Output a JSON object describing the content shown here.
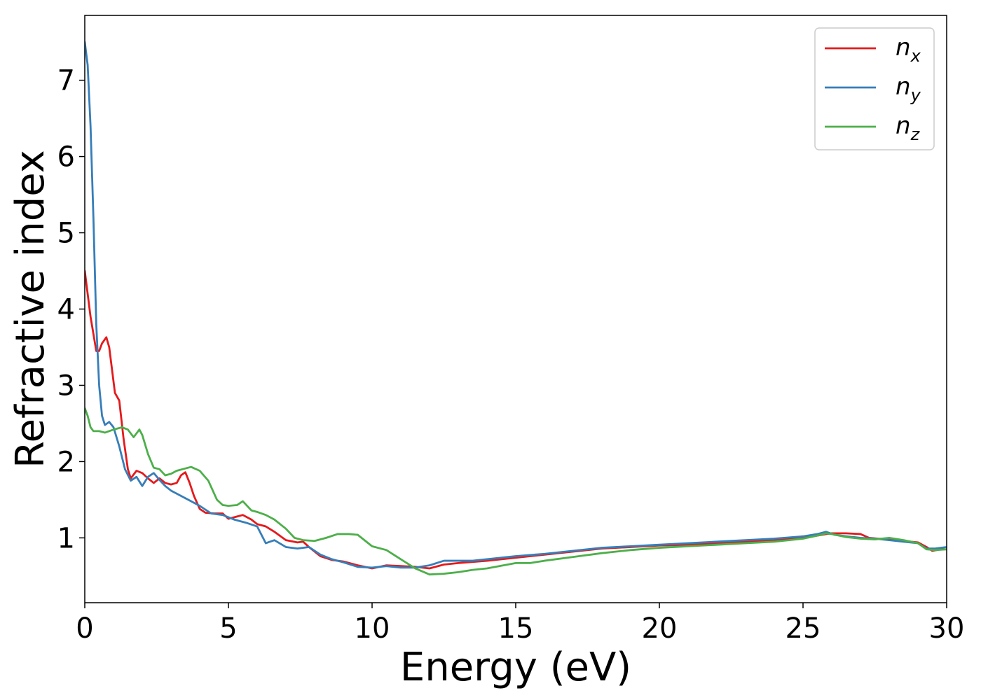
{
  "chart_data": {
    "type": "line",
    "title": "",
    "xlabel": "Energy (eV)",
    "ylabel": "Refractive index",
    "xlim": [
      0,
      30
    ],
    "ylim": [
      0.15,
      7.85
    ],
    "xticks": [
      0,
      5,
      10,
      15,
      20,
      25,
      30
    ],
    "yticks": [
      1,
      2,
      3,
      4,
      5,
      6,
      7
    ],
    "grid": false,
    "legend_position": "top-right",
    "series": [
      {
        "name_base": "n",
        "name_sub": "x",
        "color": "#e41a1c",
        "x": [
          0,
          0.2,
          0.4,
          0.5,
          0.6,
          0.75,
          0.85,
          0.95,
          1.05,
          1.2,
          1.35,
          1.5,
          1.6,
          1.8,
          2.0,
          2.2,
          2.4,
          2.6,
          2.8,
          3.0,
          3.2,
          3.35,
          3.5,
          3.65,
          3.8,
          4.0,
          4.2,
          4.5,
          4.8,
          5.0,
          5.3,
          5.5,
          5.8,
          6.0,
          6.3,
          6.6,
          7.0,
          7.4,
          7.6,
          7.8,
          8.2,
          8.6,
          9.0,
          9.5,
          10.0,
          10.5,
          11.0,
          11.5,
          12.0,
          12.5,
          13.0,
          14.0,
          15.0,
          16.0,
          17.0,
          18.0,
          19.0,
          20.0,
          21.0,
          22.0,
          23.0,
          24.0,
          25.0,
          25.5,
          25.8,
          26.0,
          26.5,
          27.0,
          27.3,
          27.6,
          28.0,
          28.5,
          29.0,
          29.3,
          29.5,
          29.8,
          30.0
        ],
        "y": [
          4.5,
          3.9,
          3.45,
          3.45,
          3.55,
          3.63,
          3.5,
          3.2,
          2.9,
          2.8,
          2.3,
          1.9,
          1.78,
          1.88,
          1.85,
          1.78,
          1.72,
          1.78,
          1.72,
          1.7,
          1.72,
          1.82,
          1.86,
          1.72,
          1.55,
          1.38,
          1.33,
          1.32,
          1.32,
          1.25,
          1.28,
          1.3,
          1.24,
          1.18,
          1.15,
          1.08,
          0.97,
          0.94,
          0.95,
          0.88,
          0.76,
          0.71,
          0.69,
          0.64,
          0.6,
          0.64,
          0.63,
          0.62,
          0.6,
          0.65,
          0.67,
          0.7,
          0.74,
          0.78,
          0.82,
          0.86,
          0.88,
          0.9,
          0.91,
          0.93,
          0.95,
          0.97,
          1.0,
          1.03,
          1.05,
          1.06,
          1.06,
          1.05,
          1.0,
          0.99,
          0.98,
          0.96,
          0.94,
          0.88,
          0.83,
          0.85,
          0.85
        ]
      },
      {
        "name_base": "n",
        "name_sub": "y",
        "color": "#377eb8",
        "x": [
          0,
          0.1,
          0.2,
          0.3,
          0.4,
          0.5,
          0.6,
          0.7,
          0.85,
          1.0,
          1.2,
          1.4,
          1.6,
          1.8,
          2.0,
          2.2,
          2.4,
          2.6,
          2.8,
          3.0,
          3.3,
          3.6,
          4.0,
          4.4,
          4.8,
          5.2,
          5.6,
          6.0,
          6.3,
          6.6,
          7.0,
          7.4,
          7.8,
          8.2,
          8.6,
          9.0,
          9.5,
          10.0,
          10.5,
          11.0,
          11.5,
          12.0,
          12.5,
          13.0,
          13.5,
          14.0,
          15.0,
          16.0,
          17.0,
          18.0,
          19.0,
          20.0,
          21.0,
          22.0,
          23.0,
          24.0,
          25.0,
          25.5,
          25.8,
          26.1,
          26.5,
          27.0,
          27.5,
          28.0,
          28.5,
          29.0,
          29.3,
          29.6,
          30.0
        ],
        "y": [
          7.5,
          7.2,
          6.4,
          5.2,
          3.8,
          3.0,
          2.6,
          2.48,
          2.52,
          2.45,
          2.2,
          1.9,
          1.75,
          1.8,
          1.68,
          1.8,
          1.85,
          1.76,
          1.68,
          1.62,
          1.56,
          1.5,
          1.42,
          1.32,
          1.3,
          1.24,
          1.2,
          1.15,
          0.93,
          0.97,
          0.88,
          0.86,
          0.88,
          0.78,
          0.72,
          0.68,
          0.62,
          0.61,
          0.63,
          0.61,
          0.61,
          0.64,
          0.7,
          0.7,
          0.7,
          0.72,
          0.76,
          0.79,
          0.83,
          0.87,
          0.89,
          0.91,
          0.93,
          0.95,
          0.97,
          0.99,
          1.02,
          1.05,
          1.08,
          1.04,
          1.02,
          1.0,
          0.99,
          0.97,
          0.95,
          0.93,
          0.86,
          0.86,
          0.88
        ]
      },
      {
        "name_base": "n",
        "name_sub": "z",
        "color": "#4daf4a",
        "x": [
          0,
          0.1,
          0.2,
          0.3,
          0.5,
          0.7,
          1.0,
          1.3,
          1.5,
          1.7,
          1.9,
          2.0,
          2.2,
          2.4,
          2.6,
          2.8,
          3.0,
          3.2,
          3.4,
          3.7,
          4.0,
          4.3,
          4.6,
          4.8,
          5.0,
          5.3,
          5.5,
          5.8,
          6.0,
          6.3,
          6.6,
          7.0,
          7.3,
          7.6,
          8.0,
          8.4,
          8.8,
          9.2,
          9.5,
          10.0,
          10.5,
          11.0,
          11.5,
          12.0,
          12.5,
          13.0,
          13.5,
          14.0,
          15.0,
          15.5,
          16.0,
          17.0,
          18.0,
          19.0,
          20.0,
          21.0,
          22.0,
          23.0,
          24.0,
          25.0,
          25.5,
          25.8,
          26.0,
          26.5,
          27.0,
          27.5,
          28.0,
          28.5,
          29.0,
          29.3,
          29.6,
          30.0
        ],
        "y": [
          2.7,
          2.6,
          2.45,
          2.4,
          2.4,
          2.38,
          2.42,
          2.45,
          2.42,
          2.32,
          2.42,
          2.35,
          2.1,
          1.92,
          1.9,
          1.82,
          1.84,
          1.88,
          1.9,
          1.93,
          1.88,
          1.75,
          1.5,
          1.43,
          1.42,
          1.43,
          1.48,
          1.36,
          1.34,
          1.3,
          1.24,
          1.12,
          1.0,
          0.97,
          0.96,
          1.0,
          1.05,
          1.05,
          1.04,
          0.89,
          0.84,
          0.72,
          0.6,
          0.52,
          0.53,
          0.55,
          0.58,
          0.6,
          0.67,
          0.67,
          0.7,
          0.75,
          0.8,
          0.84,
          0.87,
          0.89,
          0.91,
          0.93,
          0.95,
          0.99,
          1.03,
          1.06,
          1.05,
          1.01,
          0.99,
          0.98,
          1.0,
          0.97,
          0.93,
          0.85,
          0.84,
          0.85
        ]
      }
    ]
  }
}
